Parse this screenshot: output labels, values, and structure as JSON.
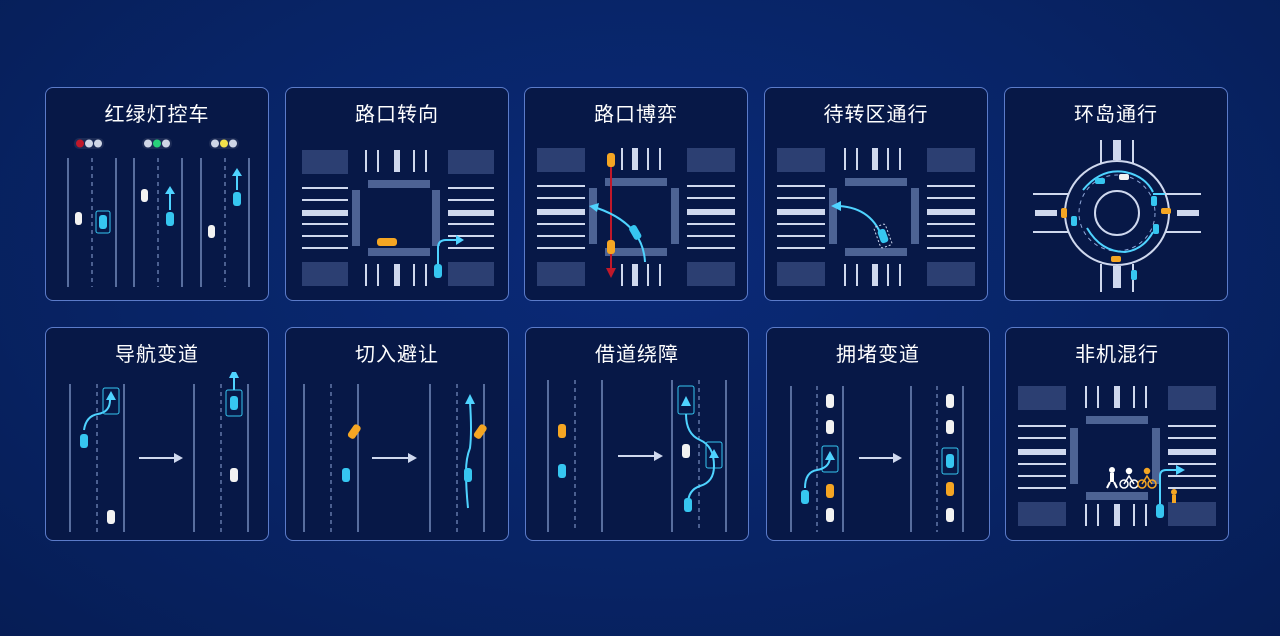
{
  "scenarios": [
    {
      "title": "红绿灯控车"
    },
    {
      "title": "路口转向"
    },
    {
      "title": "路口博弈"
    },
    {
      "title": "待转区通行"
    },
    {
      "title": "环岛通行"
    },
    {
      "title": "导航变道"
    },
    {
      "title": "切入避让"
    },
    {
      "title": "借道绕障"
    },
    {
      "title": "拥堵变道"
    },
    {
      "title": "非机混行"
    }
  ],
  "colors": {
    "background": "#082466",
    "card": "#071847",
    "border": "#5b7bc9",
    "ego_vehicle": "#36c6f0",
    "other_vehicle_white": "#f2f2f2",
    "other_vehicle_orange": "#f5a623",
    "red_light": "#c0182a",
    "green_light": "#27d07a",
    "yellow_light": "#f1e04a",
    "path_arrow": "#4fd3ff"
  },
  "icons": [
    "traffic-light-icon",
    "car-icon",
    "arrow-icon",
    "pedestrian-icon",
    "cyclist-icon",
    "roundabout-icon"
  ]
}
